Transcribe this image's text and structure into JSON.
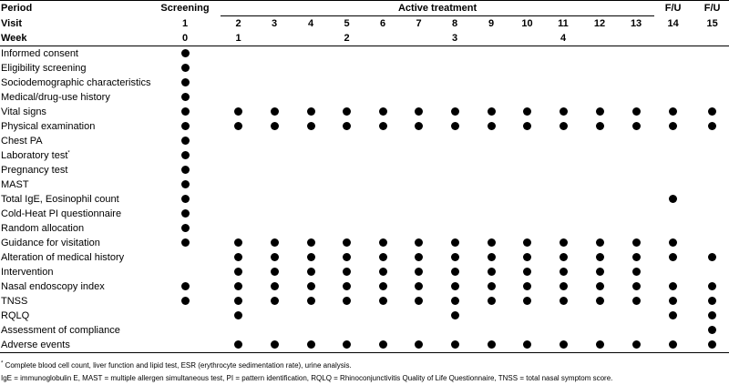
{
  "header": {
    "period_label": "Period",
    "screening": "Screening",
    "active_treatment": "Active treatment",
    "fu": "F/U",
    "visit_label": "Visit",
    "week_label": "Week",
    "visits": [
      "1",
      "2",
      "3",
      "4",
      "5",
      "6",
      "7",
      "8",
      "9",
      "10",
      "11",
      "12",
      "13",
      "14",
      "15"
    ],
    "weeks": [
      "0",
      "1",
      "",
      "",
      "2",
      "",
      "",
      "3",
      "",
      "",
      "4",
      "",
      "",
      "",
      ""
    ]
  },
  "rows": [
    {
      "label": "Informed consent",
      "visits": [
        1
      ]
    },
    {
      "label": "Eligibility screening",
      "visits": [
        1
      ]
    },
    {
      "label": "Sociodemographic characteristics",
      "visits": [
        1
      ]
    },
    {
      "label": "Medical/drug-use history",
      "visits": [
        1
      ]
    },
    {
      "label": "Vital signs",
      "visits": [
        1,
        2,
        3,
        4,
        5,
        6,
        7,
        8,
        9,
        10,
        11,
        12,
        13,
        14,
        15
      ]
    },
    {
      "label": "Physical examination",
      "visits": [
        1,
        2,
        3,
        4,
        5,
        6,
        7,
        8,
        9,
        10,
        11,
        12,
        13,
        14,
        15
      ]
    },
    {
      "label": "Chest PA",
      "visits": [
        1
      ]
    },
    {
      "label": "Laboratory test",
      "sup": "*",
      "visits": [
        1
      ]
    },
    {
      "label": "Pregnancy test",
      "visits": [
        1
      ]
    },
    {
      "label": "MAST",
      "visits": [
        1
      ]
    },
    {
      "label": "Total IgE, Eosinophil count",
      "visits": [
        1,
        14
      ]
    },
    {
      "label": "Cold-Heat PI questionnaire",
      "visits": [
        1
      ]
    },
    {
      "label": "Random allocation",
      "visits": [
        1
      ]
    },
    {
      "label": "Guidance for visitation",
      "visits": [
        1,
        2,
        3,
        4,
        5,
        6,
        7,
        8,
        9,
        10,
        11,
        12,
        13,
        14
      ]
    },
    {
      "label": "Alteration of medical history",
      "visits": [
        2,
        3,
        4,
        5,
        6,
        7,
        8,
        9,
        10,
        11,
        12,
        13,
        14,
        15
      ]
    },
    {
      "label": "Intervention",
      "visits": [
        2,
        3,
        4,
        5,
        6,
        7,
        8,
        9,
        10,
        11,
        12,
        13
      ]
    },
    {
      "label": "Nasal endoscopy index",
      "visits": [
        1,
        2,
        3,
        4,
        5,
        6,
        7,
        8,
        9,
        10,
        11,
        12,
        13,
        14,
        15
      ]
    },
    {
      "label": "TNSS",
      "visits": [
        1,
        2,
        3,
        4,
        5,
        6,
        7,
        8,
        9,
        10,
        11,
        12,
        13,
        14,
        15
      ]
    },
    {
      "label": "RQLQ",
      "visits": [
        2,
        8,
        14,
        15
      ]
    },
    {
      "label": "Assessment of compliance",
      "visits": [
        15
      ]
    },
    {
      "label": "Adverse events",
      "visits": [
        2,
        3,
        4,
        5,
        6,
        7,
        8,
        9,
        10,
        11,
        12,
        13,
        14,
        15
      ]
    }
  ],
  "footnotes": {
    "note1_mark": "*",
    "note1": "Complete blood cell count, liver function and lipid test, ESR (erythrocyte sedimentation rate), urine analysis.",
    "note2": "IgE = immunoglobulin E, MAST = multiple allergen simultaneous test, PI = pattern identification, RQLQ = Rhinoconjunctivitis Quality of Life Questionnaire, TNSS = total nasal symptom score."
  }
}
